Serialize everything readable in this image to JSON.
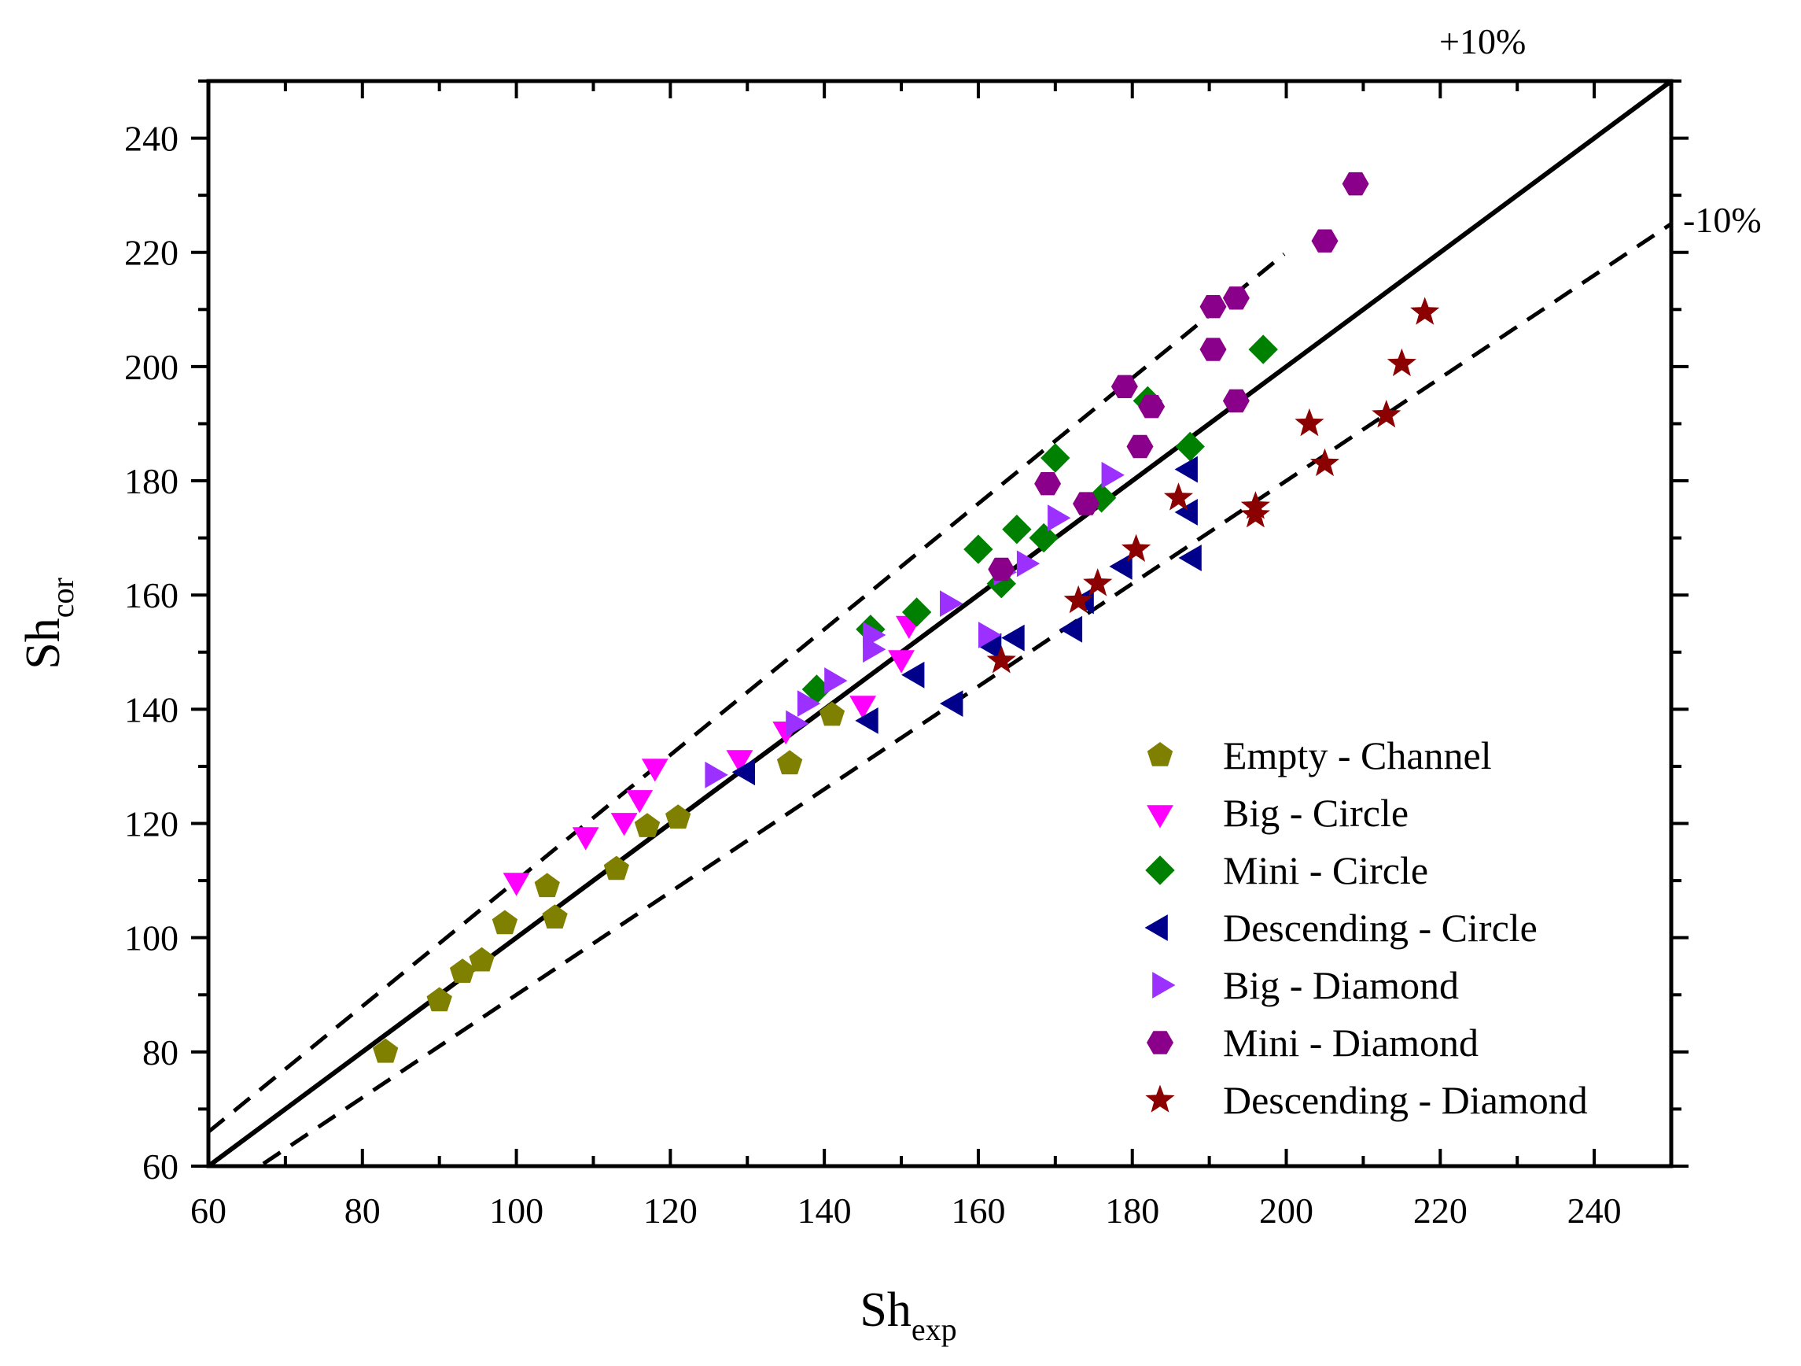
{
  "chart_data": {
    "type": "scatter",
    "title": "",
    "xlabel": {
      "main": "Sh",
      "sub": "exp"
    },
    "ylabel": {
      "main": "Sh",
      "sub": "cor"
    },
    "xlim": [
      60,
      250
    ],
    "ylim": [
      60,
      250
    ],
    "xticks": [
      60,
      80,
      100,
      120,
      140,
      160,
      180,
      200,
      220,
      240
    ],
    "yticks": [
      60,
      80,
      100,
      120,
      140,
      160,
      180,
      200,
      220,
      240
    ],
    "grid": false,
    "legend_position": "bottom-right",
    "reference_lines": [
      {
        "name": "y=x",
        "slope": 1.0,
        "style": "solid"
      },
      {
        "name": "+10%",
        "label": "+10%",
        "slope": 1.1,
        "style": "dashed"
      },
      {
        "name": "-10%",
        "label": "-10%",
        "slope": 0.9,
        "style": "dashed"
      }
    ],
    "series": [
      {
        "name": "Empty - Channel",
        "marker": "pentagon",
        "color": "#808000",
        "points": [
          [
            83,
            80
          ],
          [
            90,
            89
          ],
          [
            93,
            94
          ],
          [
            95.5,
            96
          ],
          [
            98.5,
            102.5
          ],
          [
            104,
            109
          ],
          [
            105,
            103.5
          ],
          [
            113,
            112
          ],
          [
            117,
            119.5
          ],
          [
            121,
            121
          ],
          [
            135.5,
            130.5
          ],
          [
            141,
            139
          ]
        ]
      },
      {
        "name": "Big - Circle",
        "marker": "triangle-down",
        "color": "#ff00ff",
        "points": [
          [
            100,
            110
          ],
          [
            109,
            118
          ],
          [
            114,
            120.5
          ],
          [
            116,
            124.5
          ],
          [
            118,
            130
          ],
          [
            129,
            131.5
          ],
          [
            135,
            136.5
          ],
          [
            145,
            141
          ],
          [
            150,
            149
          ],
          [
            151,
            155
          ]
        ]
      },
      {
        "name": "Mini - Circle",
        "marker": "diamond",
        "color": "#008000",
        "points": [
          [
            139,
            143.5
          ],
          [
            146,
            154
          ],
          [
            152,
            157
          ],
          [
            160,
            168
          ],
          [
            163,
            162
          ],
          [
            165,
            171.5
          ],
          [
            168.5,
            170
          ],
          [
            170,
            184
          ],
          [
            176,
            177
          ],
          [
            182,
            194
          ],
          [
            187.5,
            186
          ],
          [
            197,
            203
          ]
        ]
      },
      {
        "name": "Descending - Circle",
        "marker": "triangle-left",
        "color": "#00008b",
        "points": [
          [
            130,
            129
          ],
          [
            146,
            138
          ],
          [
            152,
            146
          ],
          [
            157,
            141
          ],
          [
            162,
            151
          ],
          [
            165,
            152.5
          ],
          [
            172.5,
            154
          ],
          [
            174,
            159
          ],
          [
            179,
            165
          ],
          [
            187.5,
            182
          ],
          [
            187.5,
            174.5
          ],
          [
            188,
            166.5
          ]
        ]
      },
      {
        "name": "Big - Diamond",
        "marker": "triangle-right",
        "color": "#9b30ff",
        "points": [
          [
            125.5,
            128.5
          ],
          [
            136,
            137.5
          ],
          [
            137.5,
            141
          ],
          [
            141,
            145
          ],
          [
            146,
            150.5
          ],
          [
            146,
            153
          ],
          [
            156,
            158.5
          ],
          [
            161,
            153
          ],
          [
            163,
            164
          ],
          [
            166,
            165.5
          ],
          [
            170,
            173.5
          ],
          [
            177,
            181
          ]
        ]
      },
      {
        "name": "Mini - Diamond",
        "marker": "hexagon",
        "color": "#8b008b",
        "points": [
          [
            163,
            164.5
          ],
          [
            169,
            179.5
          ],
          [
            174,
            176
          ],
          [
            179,
            196.5
          ],
          [
            181,
            186
          ],
          [
            182.5,
            193
          ],
          [
            190.5,
            203
          ],
          [
            190.5,
            210.5
          ],
          [
            193.5,
            194
          ],
          [
            193.5,
            212
          ],
          [
            205,
            222
          ],
          [
            209,
            232
          ]
        ]
      },
      {
        "name": "Descending - Diamond",
        "marker": "star",
        "color": "#8b0000",
        "points": [
          [
            163,
            148.5
          ],
          [
            173,
            159
          ],
          [
            175.5,
            162
          ],
          [
            180.5,
            168
          ],
          [
            186,
            177
          ],
          [
            196,
            175.5
          ],
          [
            196,
            174
          ],
          [
            203,
            190
          ],
          [
            205,
            183
          ],
          [
            213,
            191.5
          ],
          [
            215,
            200.5
          ],
          [
            218,
            209.5
          ]
        ]
      }
    ]
  }
}
